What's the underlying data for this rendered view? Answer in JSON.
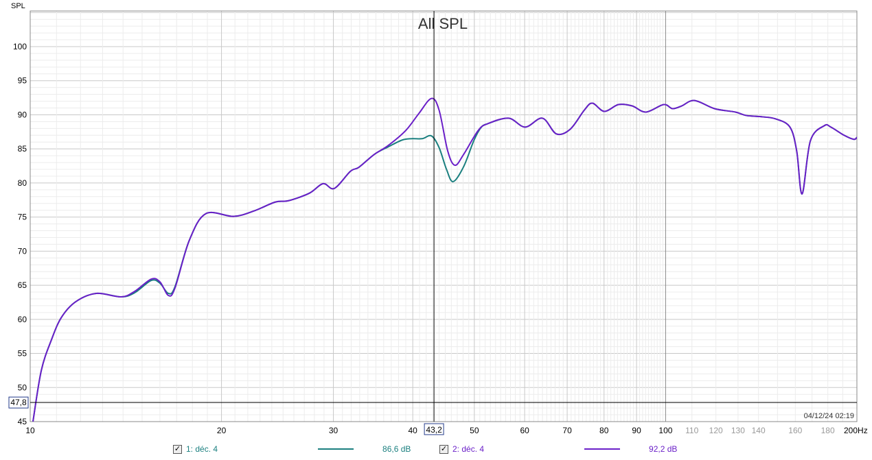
{
  "chart_data": {
    "type": "line",
    "title": "All SPL",
    "ylabel": "SPL",
    "xunit": "Hz",
    "xscale": "log",
    "xlim": [
      10,
      200
    ],
    "ylim": [
      45,
      105
    ],
    "yticks": [
      45,
      50,
      55,
      60,
      65,
      70,
      75,
      80,
      85,
      90,
      95,
      100
    ],
    "xticks_major": [
      10,
      20,
      30,
      40,
      50,
      60,
      70,
      80,
      90,
      100
    ],
    "xticks_minor": [
      110,
      120,
      130,
      140,
      160,
      180
    ],
    "xtick_last": "200Hz",
    "grid": true,
    "timestamp": "04/12/24 02:19",
    "cursor": {
      "x_label": "43,2",
      "y_label": "47,8",
      "x": 43.2,
      "y": 47.8
    },
    "series": [
      {
        "name": "1: déc. 4",
        "value_label": "86,6 dB",
        "color": "#1a7f7f",
        "points": [
          [
            10.1,
            45
          ],
          [
            10.41,
            52.5
          ],
          [
            10.8,
            57
          ],
          [
            11.2,
            60.3
          ],
          [
            11.8,
            62.6
          ],
          [
            12.7,
            63.8
          ],
          [
            13.9,
            63.3
          ],
          [
            14.6,
            63.9
          ],
          [
            15.5,
            65.7
          ],
          [
            16.0,
            65.3
          ],
          [
            16.5,
            63.8
          ],
          [
            16.9,
            64.8
          ],
          [
            17.8,
            71.6
          ],
          [
            18.9,
            75.5
          ],
          [
            20.9,
            75.1
          ],
          [
            22.5,
            75.9
          ],
          [
            24.3,
            77.2
          ],
          [
            25.5,
            77.4
          ],
          [
            27.5,
            78.5
          ],
          [
            28.9,
            79.9
          ],
          [
            30.1,
            79.2
          ],
          [
            31.9,
            81.7
          ],
          [
            32.9,
            82.3
          ],
          [
            34.8,
            84.2
          ],
          [
            36.6,
            85.3
          ],
          [
            38.5,
            86.3
          ],
          [
            39.9,
            86.5
          ],
          [
            41.4,
            86.5
          ],
          [
            42.8,
            86.9
          ],
          [
            44.0,
            85.2
          ],
          [
            45.2,
            82.0
          ],
          [
            46.3,
            80.2
          ],
          [
            48.1,
            82.4
          ],
          [
            49.9,
            86.2
          ],
          [
            51.2,
            88.1
          ],
          [
            52.5,
            88.7
          ],
          [
            56.6,
            89.5
          ],
          [
            60.1,
            88.2
          ],
          [
            64.0,
            89.5
          ],
          [
            67.3,
            87.2
          ],
          [
            70.8,
            87.9
          ],
          [
            74.5,
            90.7
          ],
          [
            76.7,
            91.7
          ],
          [
            80.1,
            90.5
          ],
          [
            84.3,
            91.5
          ],
          [
            88.6,
            91.3
          ],
          [
            93.1,
            90.4
          ],
          [
            99.3,
            91.5
          ],
          [
            102.5,
            90.9
          ],
          [
            106,
            91.3
          ],
          [
            111,
            92.1
          ],
          [
            119.4,
            90.9
          ],
          [
            128.8,
            90.4
          ],
          [
            133.9,
            89.9
          ],
          [
            142.1,
            89.7
          ],
          [
            149,
            89.4
          ],
          [
            156.9,
            88.2
          ],
          [
            160.8,
            84.7
          ],
          [
            164,
            78.4
          ],
          [
            169,
            86.2
          ],
          [
            177.7,
            88.4
          ],
          [
            182,
            88.2
          ],
          [
            190.9,
            87.0
          ],
          [
            197.8,
            86.4
          ],
          [
            200,
            86.7
          ]
        ]
      },
      {
        "name": "2: déc. 4",
        "value_label": "92,2 dB",
        "color": "#6a1fc8",
        "points": [
          [
            10.1,
            45
          ],
          [
            10.41,
            52.5
          ],
          [
            10.8,
            57
          ],
          [
            11.2,
            60.3
          ],
          [
            11.8,
            62.6
          ],
          [
            12.7,
            63.8
          ],
          [
            13.9,
            63.3
          ],
          [
            14.6,
            64.1
          ],
          [
            15.5,
            65.9
          ],
          [
            16.0,
            65.5
          ],
          [
            16.5,
            63.5
          ],
          [
            16.9,
            64.6
          ],
          [
            17.8,
            71.6
          ],
          [
            18.9,
            75.5
          ],
          [
            20.9,
            75.1
          ],
          [
            22.5,
            75.9
          ],
          [
            24.3,
            77.2
          ],
          [
            25.5,
            77.4
          ],
          [
            27.5,
            78.5
          ],
          [
            28.9,
            79.9
          ],
          [
            30.1,
            79.2
          ],
          [
            31.9,
            81.7
          ],
          [
            32.9,
            82.3
          ],
          [
            34.8,
            84.2
          ],
          [
            36.6,
            85.5
          ],
          [
            39.0,
            87.7
          ],
          [
            40.9,
            90.2
          ],
          [
            42.8,
            92.4
          ],
          [
            44.0,
            90.7
          ],
          [
            45.4,
            84.7
          ],
          [
            46.6,
            82.6
          ],
          [
            48.1,
            84.2
          ],
          [
            50.7,
            87.7
          ],
          [
            52.5,
            88.7
          ],
          [
            56.6,
            89.5
          ],
          [
            60.1,
            88.2
          ],
          [
            64.0,
            89.5
          ],
          [
            67.3,
            87.2
          ],
          [
            70.8,
            87.9
          ],
          [
            74.5,
            90.7
          ],
          [
            76.7,
            91.7
          ],
          [
            80.1,
            90.5
          ],
          [
            84.3,
            91.5
          ],
          [
            88.6,
            91.3
          ],
          [
            93.1,
            90.4
          ],
          [
            99.3,
            91.5
          ],
          [
            102.5,
            90.9
          ],
          [
            106,
            91.3
          ],
          [
            111,
            92.1
          ],
          [
            119.4,
            90.9
          ],
          [
            128.8,
            90.4
          ],
          [
            133.9,
            89.9
          ],
          [
            142.1,
            89.7
          ],
          [
            149,
            89.4
          ],
          [
            156.9,
            88.2
          ],
          [
            160.8,
            84.7
          ],
          [
            164,
            78.4
          ],
          [
            169,
            86.2
          ],
          [
            177.7,
            88.4
          ],
          [
            182,
            88.2
          ],
          [
            190.9,
            87.0
          ],
          [
            197.8,
            86.4
          ],
          [
            200,
            86.7
          ]
        ]
      }
    ]
  }
}
